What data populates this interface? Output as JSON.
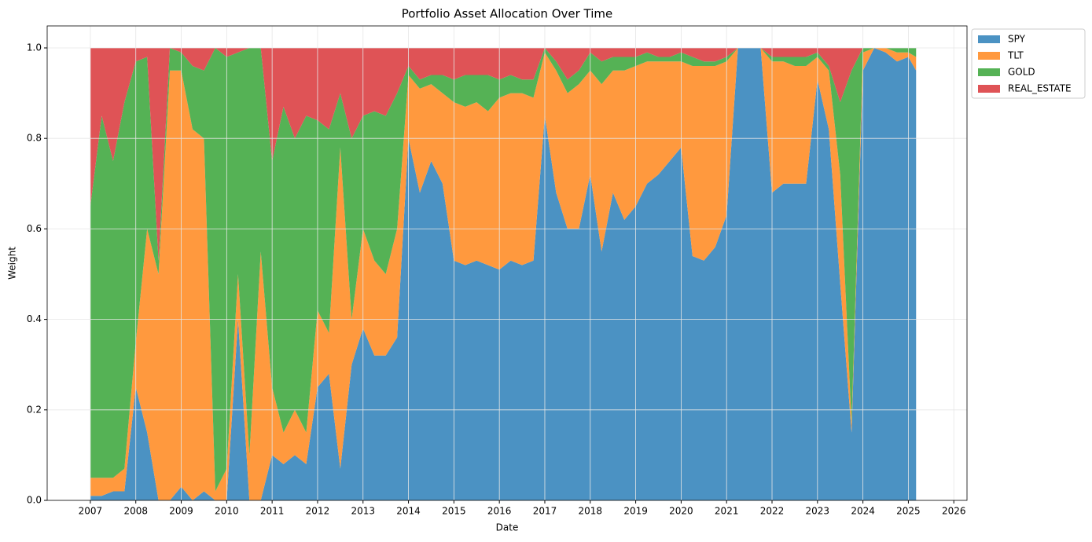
{
  "chart_data": {
    "type": "stacked_area",
    "title": "Portfolio Asset Allocation Over Time",
    "xlabel": "Date",
    "ylabel": "Weight",
    "x": [
      2007.0,
      2007.25,
      2007.5,
      2007.75,
      2008.0,
      2008.25,
      2008.5,
      2008.75,
      2009.0,
      2009.25,
      2009.5,
      2009.75,
      2010.0,
      2010.25,
      2010.5,
      2010.75,
      2011.0,
      2011.25,
      2011.5,
      2011.75,
      2012.0,
      2012.25,
      2012.5,
      2012.75,
      2013.0,
      2013.25,
      2013.5,
      2013.75,
      2014.0,
      2014.25,
      2014.5,
      2014.75,
      2015.0,
      2015.25,
      2015.5,
      2015.75,
      2016.0,
      2016.25,
      2016.5,
      2016.75,
      2017.0,
      2017.25,
      2017.5,
      2017.75,
      2018.0,
      2018.25,
      2018.5,
      2018.75,
      2019.0,
      2019.25,
      2019.5,
      2019.75,
      2020.0,
      2020.25,
      2020.5,
      2020.75,
      2021.0,
      2021.25,
      2021.5,
      2021.75,
      2022.0,
      2022.25,
      2022.5,
      2022.75,
      2023.0,
      2023.25,
      2023.5,
      2023.75,
      2024.0,
      2024.25,
      2024.5,
      2024.75,
      2025.0,
      2025.17
    ],
    "series": [
      {
        "name": "SPY",
        "color": "#4b92c3",
        "values": [
          0.01,
          0.01,
          0.02,
          0.02,
          0.25,
          0.15,
          0,
          0,
          0.03,
          0,
          0.02,
          0,
          0,
          0.4,
          0,
          0,
          0.1,
          0.08,
          0.1,
          0.08,
          0.25,
          0.28,
          0.07,
          0.3,
          0.38,
          0.32,
          0.32,
          0.36,
          0.8,
          0.68,
          0.75,
          0.7,
          0.53,
          0.52,
          0.53,
          0.52,
          0.51,
          0.53,
          0.52,
          0.53,
          0.85,
          0.68,
          0.6,
          0.6,
          0.72,
          0.55,
          0.68,
          0.62,
          0.65,
          0.7,
          0.72,
          0.75,
          0.78,
          0.54,
          0.53,
          0.56,
          0.63,
          1,
          1,
          1,
          0.68,
          0.7,
          0.7,
          0.7,
          0.93,
          0.82,
          0.48,
          0.15,
          0.95,
          1,
          0.99,
          0.97,
          0.98,
          0.95
        ]
      },
      {
        "name": "TLT",
        "color": "#ff993e",
        "values": [
          0.04,
          0.04,
          0.03,
          0.05,
          0.1,
          0.45,
          0.5,
          0.95,
          0.92,
          0.82,
          0.78,
          0.02,
          0.07,
          0.1,
          0.1,
          0.55,
          0.15,
          0.07,
          0.1,
          0.07,
          0.17,
          0.09,
          0.71,
          0.1,
          0.22,
          0.21,
          0.18,
          0.24,
          0.14,
          0.23,
          0.17,
          0.2,
          0.35,
          0.35,
          0.35,
          0.34,
          0.38,
          0.37,
          0.38,
          0.36,
          0.14,
          0.27,
          0.3,
          0.32,
          0.23,
          0.37,
          0.27,
          0.33,
          0.31,
          0.27,
          0.25,
          0.22,
          0.19,
          0.42,
          0.43,
          0.4,
          0.34,
          0,
          0,
          0,
          0.29,
          0.27,
          0.26,
          0.26,
          0.05,
          0.13,
          0.24,
          0.02,
          0.04,
          0,
          0.01,
          0.02,
          0.01,
          0.03
        ]
      },
      {
        "name": "GOLD",
        "color": "#55b255",
        "values": [
          0.6,
          0.8,
          0.7,
          0.81,
          0.62,
          0.38,
          0.03,
          0.05,
          0.04,
          0.14,
          0.15,
          0.98,
          0.91,
          0.49,
          0.9,
          0.45,
          0.5,
          0.72,
          0.6,
          0.7,
          0.42,
          0.45,
          0.12,
          0.4,
          0.25,
          0.33,
          0.35,
          0.3,
          0.02,
          0.02,
          0.02,
          0.04,
          0.05,
          0.07,
          0.06,
          0.08,
          0.04,
          0.04,
          0.03,
          0.04,
          0.01,
          0.02,
          0.03,
          0.03,
          0.04,
          0.05,
          0.03,
          0.03,
          0.02,
          0.02,
          0.01,
          0.01,
          0.02,
          0.02,
          0.01,
          0.01,
          0.01,
          0,
          0,
          0,
          0.01,
          0.01,
          0.02,
          0.02,
          0.01,
          0.01,
          0.16,
          0.78,
          0.01,
          0,
          0,
          0.01,
          0.01,
          0.02
        ]
      },
      {
        "name": "REAL_ESTATE",
        "color": "#df5356",
        "values": [
          0.35,
          0.15,
          0.25,
          0.12,
          0.03,
          0.02,
          0.47,
          0,
          0.01,
          0.04,
          0.05,
          0,
          0.02,
          0.01,
          0,
          0,
          0.25,
          0.13,
          0.2,
          0.15,
          0.16,
          0.18,
          0.1,
          0.2,
          0.15,
          0.14,
          0.15,
          0.1,
          0.04,
          0.07,
          0.06,
          0.06,
          0.07,
          0.06,
          0.06,
          0.06,
          0.07,
          0.06,
          0.07,
          0.07,
          0,
          0.03,
          0.07,
          0.05,
          0.01,
          0.03,
          0.02,
          0.02,
          0.02,
          0.01,
          0.02,
          0.02,
          0.01,
          0.02,
          0.03,
          0.03,
          0.02,
          0,
          0,
          0,
          0.02,
          0.02,
          0.02,
          0.02,
          0.01,
          0.04,
          0.12,
          0.05,
          0,
          0,
          0,
          0,
          0,
          0
        ]
      }
    ],
    "xlim": [
      2006.05,
      2026.29
    ],
    "xticks": [
      2007,
      2008,
      2009,
      2010,
      2011,
      2012,
      2013,
      2014,
      2015,
      2016,
      2017,
      2018,
      2019,
      2020,
      2021,
      2022,
      2023,
      2024,
      2025,
      2026
    ],
    "ylim": [
      0,
      1.0486
    ],
    "yticks": [
      {
        "value": 0,
        "label": "0.0"
      },
      0.2,
      0.4,
      0.6,
      0.8,
      {
        "value": 1,
        "label": "1.0"
      }
    ],
    "grid": true,
    "legend": "outside upper left"
  }
}
